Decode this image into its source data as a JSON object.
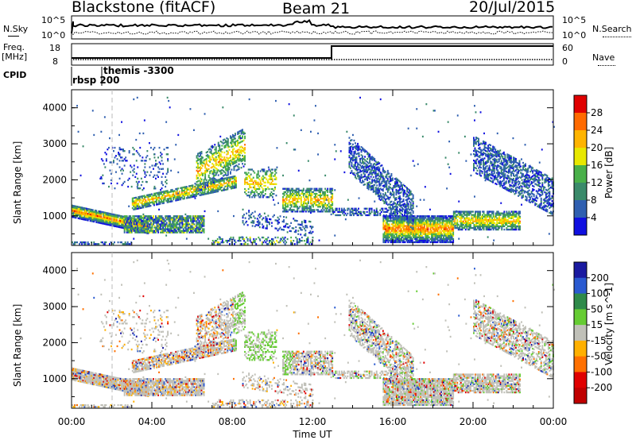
{
  "header": {
    "title": "Blackstone (fitACF)",
    "beam": "Beam 21",
    "date": "20/Jul/2015"
  },
  "strip_panels": {
    "nsky_label": "N.Sky",
    "nsky_ticks": [
      "10^5",
      "10^0"
    ],
    "nsearch_label": "N.Search",
    "nsearch_ticks": [
      "10^5",
      "10^0"
    ],
    "freq_label_line1": "Freq.",
    "freq_label_line2": "[MHz]",
    "freq_ticks": [
      "18",
      "8"
    ],
    "nave_label": "Nave",
    "nave_ticks": [
      "60",
      "0"
    ],
    "cpid_label": "CPID",
    "cpid_items": [
      "rbsp 200",
      "themis -3300"
    ]
  },
  "chart_data": [
    {
      "type": "heatmap",
      "title": "",
      "xlabel": "",
      "ylabel": "Slant Range [km]",
      "colorbar_label": "Power [dB]",
      "colorbar_ticks": [
        "28",
        "24",
        "20",
        "16",
        "12",
        "8",
        "4"
      ],
      "colorbar_colors": [
        "#e00000",
        "#ff6a00",
        "#ffb400",
        "#e8e800",
        "#49b049",
        "#3a8a6a",
        "#2f5fb0",
        "#1010e0"
      ],
      "ylim": [
        180,
        4500
      ],
      "y_ticks": [
        "4000",
        "3000",
        "2000",
        "1000"
      ],
      "x_ticks": [
        "00:00",
        "04:00",
        "08:00",
        "12:00",
        "16:00",
        "20:00",
        "00:00"
      ],
      "xlim_hours": [
        0,
        24
      ]
    },
    {
      "type": "heatmap",
      "title": "",
      "xlabel": "Time UT",
      "ylabel": "Slant Range [km]",
      "colorbar_label": "Velocity [m s^-1]",
      "colorbar_ticks": [
        "200",
        "100",
        "50",
        "15",
        "-15",
        "-50",
        "-100",
        "-200"
      ],
      "colorbar_colors": [
        "#1a1aa0",
        "#2a5ad0",
        "#2e8a4a",
        "#66cc33",
        "#c0c0b8",
        "#ffb000",
        "#ff7000",
        "#e00000",
        "#c00000"
      ],
      "ylim": [
        180,
        4500
      ],
      "y_ticks": [
        "4000",
        "3000",
        "2000",
        "1000"
      ],
      "x_ticks": [
        "00:00",
        "04:00",
        "08:00",
        "12:00",
        "16:00",
        "20:00",
        "00:00"
      ],
      "xlim_hours": [
        0,
        24
      ]
    }
  ],
  "echo_regions": [
    {
      "t0": 0.0,
      "t1": 3.8,
      "r0": 950,
      "r1": 1300,
      "slope": -120,
      "p": 0.95,
      "kind": "strong"
    },
    {
      "t0": 3.0,
      "t1": 8.2,
      "r0": 1150,
      "r1": 1500,
      "slope": 120,
      "p": 0.75,
      "kind": "mid"
    },
    {
      "t0": 2.6,
      "t1": 6.6,
      "r0": 520,
      "r1": 980,
      "slope": 0,
      "p": 0.8,
      "kind": "mixed"
    },
    {
      "t0": 0.0,
      "t1": 3.0,
      "r0": 200,
      "r1": 260,
      "slope": 0,
      "p": 0.5,
      "kind": "weak"
    },
    {
      "t0": 6.2,
      "t1": 8.6,
      "r0": 1650,
      "r1": 2700,
      "slope": 300,
      "p": 0.45,
      "kind": "mid"
    },
    {
      "t0": 1.4,
      "t1": 4.8,
      "r0": 1700,
      "r1": 2900,
      "slope": 0,
      "p": 0.12,
      "kind": "weak"
    },
    {
      "t0": 7.0,
      "t1": 12.0,
      "r0": 200,
      "r1": 420,
      "slope": 0,
      "p": 0.35,
      "kind": "mixed"
    },
    {
      "t0": 8.5,
      "t1": 12.0,
      "r0": 750,
      "r1": 1200,
      "slope": -100,
      "p": 0.25,
      "kind": "weak"
    },
    {
      "t0": 8.6,
      "t1": 10.2,
      "r0": 1500,
      "r1": 2300,
      "slope": 0,
      "p": 0.35,
      "kind": "mid"
    },
    {
      "t0": 10.5,
      "t1": 13.0,
      "r0": 1100,
      "r1": 1750,
      "slope": 0,
      "p": 0.65,
      "kind": "mid"
    },
    {
      "t0": 13.0,
      "t1": 16.2,
      "r0": 1000,
      "r1": 1200,
      "slope": 0,
      "p": 0.55,
      "kind": "weak"
    },
    {
      "t0": 15.5,
      "t1": 19.0,
      "r0": 250,
      "r1": 1000,
      "slope": 0,
      "p": 0.85,
      "kind": "strong"
    },
    {
      "t0": 19.0,
      "t1": 22.3,
      "r0": 600,
      "r1": 1100,
      "slope": 0,
      "p": 0.75,
      "kind": "mid"
    },
    {
      "t0": 13.8,
      "t1": 17.0,
      "r0": 2200,
      "r1": 3200,
      "slope": -500,
      "p": 0.55,
      "kind": "weak"
    },
    {
      "t0": 20.0,
      "t1": 24.0,
      "r0": 2200,
      "r1": 3200,
      "slope": -300,
      "p": 0.55,
      "kind": "weak"
    },
    {
      "t0": 0.0,
      "t1": 24.0,
      "r0": 300,
      "r1": 4300,
      "slope": 0,
      "p": 0.006,
      "kind": "weak"
    }
  ]
}
